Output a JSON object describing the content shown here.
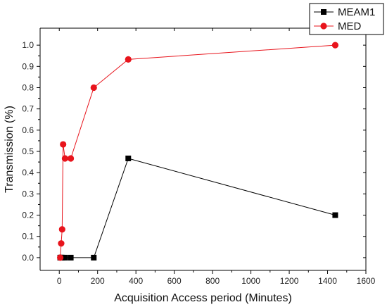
{
  "chart_data": {
    "type": "line",
    "xlabel": "Acquisition Access period  (Minutes)",
    "ylabel": "Transmission (%)",
    "xlim": [
      -100,
      1600
    ],
    "ylim": [
      -0.06,
      1.08
    ],
    "xticks": [
      0,
      200,
      400,
      600,
      800,
      1000,
      1200,
      1400,
      1600
    ],
    "yticks": [
      0.0,
      0.1,
      0.2,
      0.3,
      0.4,
      0.5,
      0.6,
      0.7,
      0.8,
      0.9,
      1.0
    ],
    "xtick_labels": [
      "0",
      "200",
      "400",
      "600",
      "800",
      "1000",
      "1200",
      "1400",
      "1600"
    ],
    "ytick_labels": [
      "0.0",
      "0.1",
      "0.2",
      "0.3",
      "0.4",
      "0.5",
      "0.6",
      "0.7",
      "0.8",
      "0.9",
      "1.0"
    ],
    "grid": false,
    "legend_position": "top-right",
    "series": [
      {
        "name": "MEAM1",
        "color": "#000000",
        "marker": "square",
        "x": [
          5,
          10,
          15,
          30,
          60,
          180,
          360,
          1440
        ],
        "y": [
          0.0,
          0.0,
          0.0,
          0.0,
          0.0,
          0.0,
          0.467,
          0.2
        ]
      },
      {
        "name": "MED",
        "color": "#e8141c",
        "marker": "circle",
        "x": [
          5,
          10,
          15,
          20,
          30,
          60,
          180,
          360,
          1440
        ],
        "y": [
          0.0,
          0.067,
          0.133,
          0.533,
          0.467,
          0.467,
          0.8,
          0.933,
          1.0
        ]
      }
    ]
  }
}
